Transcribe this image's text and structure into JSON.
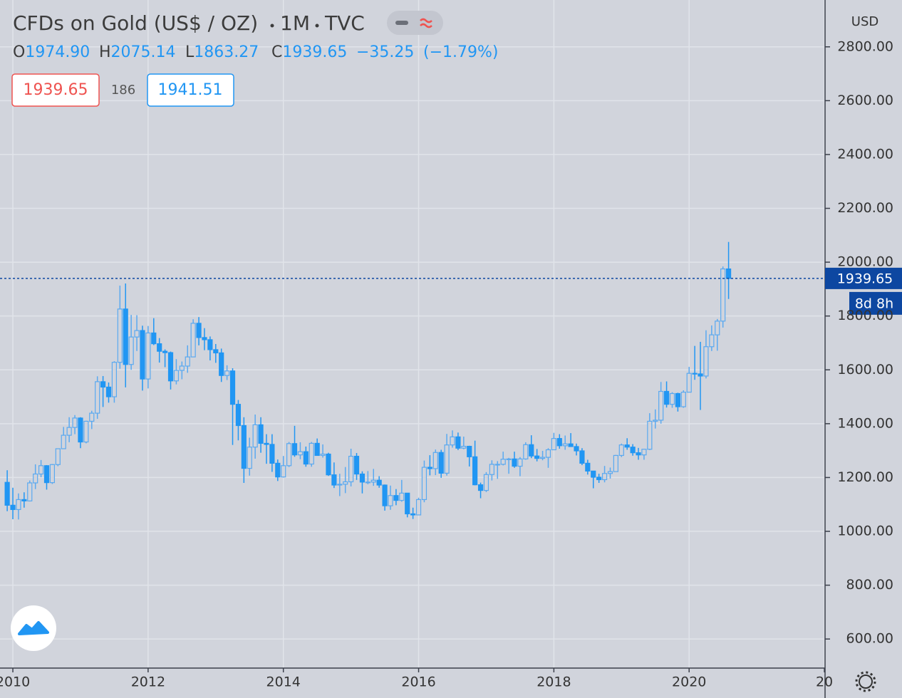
{
  "chart_data": {
    "type": "candlestick",
    "title": "CFDs on Gold (US$ / OZ)",
    "interval": "1M",
    "source": "TVC",
    "legend": [
      {
        "label": "O",
        "value": "1974.90"
      },
      {
        "label": "H",
        "value": "2075.14"
      },
      {
        "label": "L",
        "value": "1863.27"
      },
      {
        "label": "C",
        "value": "1939.65"
      }
    ],
    "change": "−35.25",
    "change_pct": "(−1.79%)",
    "sell": "1939.65",
    "spread": "186",
    "buy": "1941.51",
    "y_unit": "USD",
    "last_price": {
      "value": 1939.65,
      "label": "1939.65"
    },
    "countdown": "8d 8h",
    "up_color": "#5aa9f0",
    "down_color": "#2196f3",
    "grid": true,
    "x": [
      "2009-12",
      "2010-01",
      "2010-02",
      "2010-03",
      "2010-04",
      "2010-05",
      "2010-06",
      "2010-07",
      "2010-08",
      "2010-09",
      "2010-10",
      "2010-11",
      "2010-12",
      "2011-01",
      "2011-02",
      "2011-03",
      "2011-04",
      "2011-05",
      "2011-06",
      "2011-07",
      "2011-08",
      "2011-09",
      "2011-10",
      "2011-11",
      "2011-12",
      "2012-01",
      "2012-02",
      "2012-03",
      "2012-04",
      "2012-05",
      "2012-06",
      "2012-07",
      "2012-08",
      "2012-09",
      "2012-10",
      "2012-11",
      "2012-12",
      "2013-01",
      "2013-02",
      "2013-03",
      "2013-04",
      "2013-05",
      "2013-06",
      "2013-07",
      "2013-08",
      "2013-09",
      "2013-10",
      "2013-11",
      "2013-12",
      "2014-01",
      "2014-02",
      "2014-03",
      "2014-04",
      "2014-05",
      "2014-06",
      "2014-07",
      "2014-08",
      "2014-09",
      "2014-10",
      "2014-11",
      "2014-12",
      "2015-01",
      "2015-02",
      "2015-03",
      "2015-04",
      "2015-05",
      "2015-06",
      "2015-07",
      "2015-08",
      "2015-09",
      "2015-10",
      "2015-11",
      "2015-12",
      "2016-01",
      "2016-02",
      "2016-03",
      "2016-04",
      "2016-05",
      "2016-06",
      "2016-07",
      "2016-08",
      "2016-09",
      "2016-10",
      "2016-11",
      "2016-12",
      "2017-01",
      "2017-02",
      "2017-03",
      "2017-04",
      "2017-05",
      "2017-06",
      "2017-07",
      "2017-08",
      "2017-09",
      "2017-10",
      "2017-11",
      "2017-12",
      "2018-01",
      "2018-02",
      "2018-03",
      "2018-04",
      "2018-05",
      "2018-06",
      "2018-07",
      "2018-08",
      "2018-09",
      "2018-10",
      "2018-11",
      "2018-12",
      "2019-01",
      "2019-02",
      "2019-03",
      "2019-04",
      "2019-05",
      "2019-06",
      "2019-07",
      "2019-08",
      "2019-09",
      "2019-10",
      "2019-11",
      "2019-12",
      "2020-01",
      "2020-02",
      "2020-03",
      "2020-04",
      "2020-05",
      "2020-06",
      "2020-07",
      "2020-08"
    ],
    "open": [
      1182,
      1097,
      1081,
      1118,
      1113,
      1180,
      1213,
      1244,
      1181,
      1248,
      1307,
      1357,
      1386,
      1421,
      1332,
      1409,
      1439,
      1556,
      1536,
      1500,
      1628,
      1826,
      1620,
      1722,
      1746,
      1566,
      1737,
      1697,
      1669,
      1664,
      1559,
      1598,
      1614,
      1648,
      1773,
      1720,
      1712,
      1675,
      1663,
      1579,
      1596,
      1472,
      1393,
      1234,
      1313,
      1396,
      1327,
      1323,
      1253,
      1202,
      1244,
      1326,
      1284,
      1296,
      1250,
      1327,
      1282,
      1287,
      1210,
      1172,
      1175,
      1184,
      1279,
      1213,
      1183,
      1183,
      1190,
      1172,
      1095,
      1133,
      1115,
      1142,
      1065,
      1061,
      1118,
      1238,
      1233,
      1293,
      1216,
      1321,
      1351,
      1309,
      1316,
      1277,
      1173,
      1152,
      1211,
      1249,
      1249,
      1268,
      1269,
      1242,
      1269,
      1322,
      1280,
      1271,
      1275,
      1303,
      1345,
      1318,
      1325,
      1315,
      1299,
      1253,
      1224,
      1201,
      1192,
      1215,
      1222,
      1282,
      1321,
      1313,
      1292,
      1284,
      1305,
      1409,
      1413,
      1520,
      1472,
      1512,
      1463,
      1517,
      1587,
      1585,
      1577,
      1686,
      1730,
      1781,
      1974.9
    ],
    "high": [
      1227,
      1162,
      1141,
      1145,
      1189,
      1249,
      1265,
      1246,
      1250,
      1308,
      1388,
      1424,
      1432,
      1424,
      1411,
      1448,
      1576,
      1577,
      1553,
      1632,
      1913,
      1921,
      1804,
      1803,
      1764,
      1763,
      1792,
      1718,
      1676,
      1668,
      1640,
      1631,
      1691,
      1788,
      1796,
      1755,
      1724,
      1696,
      1679,
      1617,
      1606,
      1488,
      1424,
      1348,
      1434,
      1424,
      1361,
      1361,
      1267,
      1280,
      1332,
      1392,
      1331,
      1315,
      1332,
      1345,
      1323,
      1292,
      1256,
      1214,
      1239,
      1307,
      1291,
      1223,
      1224,
      1232,
      1205,
      1174,
      1170,
      1157,
      1191,
      1142,
      1088,
      1125,
      1263,
      1283,
      1304,
      1303,
      1362,
      1375,
      1367,
      1352,
      1318,
      1337,
      1181,
      1220,
      1264,
      1261,
      1296,
      1273,
      1296,
      1276,
      1331,
      1357,
      1306,
      1299,
      1309,
      1366,
      1361,
      1356,
      1365,
      1326,
      1309,
      1266,
      1224,
      1214,
      1243,
      1237,
      1284,
      1326,
      1346,
      1324,
      1310,
      1306,
      1439,
      1453,
      1555,
      1557,
      1517,
      1515,
      1524,
      1611,
      1689,
      1704,
      1747,
      1765,
      1789,
      1984,
      2075.14
    ],
    "low": [
      1075,
      1045,
      1044,
      1088,
      1111,
      1157,
      1201,
      1155,
      1176,
      1242,
      1306,
      1331,
      1361,
      1309,
      1327,
      1380,
      1418,
      1462,
      1478,
      1478,
      1604,
      1535,
      1600,
      1670,
      1523,
      1531,
      1692,
      1627,
      1610,
      1527,
      1546,
      1565,
      1589,
      1648,
      1691,
      1673,
      1635,
      1626,
      1555,
      1562,
      1321,
      1338,
      1180,
      1207,
      1270,
      1292,
      1251,
      1221,
      1187,
      1200,
      1239,
      1277,
      1268,
      1240,
      1240,
      1281,
      1274,
      1206,
      1161,
      1131,
      1142,
      1167,
      1191,
      1141,
      1175,
      1169,
      1162,
      1077,
      1080,
      1097,
      1110,
      1052,
      1046,
      1061,
      1108,
      1208,
      1209,
      1199,
      1207,
      1311,
      1302,
      1305,
      1241,
      1171,
      1123,
      1146,
      1189,
      1195,
      1245,
      1214,
      1236,
      1205,
      1266,
      1272,
      1260,
      1264,
      1236,
      1302,
      1307,
      1303,
      1314,
      1282,
      1246,
      1211,
      1160,
      1180,
      1182,
      1196,
      1221,
      1276,
      1303,
      1281,
      1266,
      1266,
      1302,
      1382,
      1400,
      1460,
      1459,
      1445,
      1459,
      1517,
      1563,
      1451,
      1568,
      1670,
      1671,
      1757,
      1863.27
    ],
    "close": [
      1097,
      1081,
      1118,
      1113,
      1180,
      1213,
      1244,
      1181,
      1248,
      1307,
      1357,
      1386,
      1421,
      1332,
      1409,
      1439,
      1556,
      1536,
      1500,
      1628,
      1826,
      1620,
      1722,
      1746,
      1566,
      1737,
      1697,
      1669,
      1664,
      1559,
      1598,
      1614,
      1648,
      1773,
      1720,
      1712,
      1675,
      1663,
      1579,
      1596,
      1472,
      1393,
      1234,
      1313,
      1396,
      1327,
      1323,
      1253,
      1202,
      1244,
      1326,
      1284,
      1296,
      1250,
      1327,
      1282,
      1287,
      1210,
      1172,
      1175,
      1184,
      1279,
      1213,
      1183,
      1183,
      1190,
      1172,
      1095,
      1133,
      1115,
      1142,
      1065,
      1061,
      1118,
      1238,
      1233,
      1293,
      1216,
      1321,
      1351,
      1309,
      1316,
      1277,
      1173,
      1152,
      1211,
      1249,
      1249,
      1268,
      1269,
      1242,
      1269,
      1322,
      1280,
      1271,
      1275,
      1303,
      1345,
      1318,
      1325,
      1315,
      1299,
      1253,
      1224,
      1201,
      1192,
      1215,
      1222,
      1282,
      1321,
      1313,
      1292,
      1284,
      1305,
      1409,
      1413,
      1520,
      1472,
      1512,
      1463,
      1517,
      1587,
      1585,
      1577,
      1686,
      1730,
      1781,
      1975,
      1939.65
    ],
    "xlim": [
      2009.81,
      2022.01
    ],
    "xticks": [
      2010,
      2012,
      2014,
      2016,
      2018,
      2020,
      {
        "value": 2022,
        "label": "20"
      }
    ],
    "ylim": [
      492,
      2974
    ],
    "yticks": [
      {
        "value": 600,
        "label": "600.00"
      },
      {
        "value": 800,
        "label": "800.00"
      },
      {
        "value": 1000,
        "label": "1000.00"
      },
      {
        "value": 1200,
        "label": "1200.00"
      },
      {
        "value": 1400,
        "label": "1400.00"
      },
      {
        "value": 1600,
        "label": "1600.00"
      },
      {
        "value": 1800,
        "label": "1800.00"
      },
      {
        "value": 2000,
        "label": "2000.00"
      },
      {
        "value": 2200,
        "label": "2200.00"
      },
      {
        "value": 2400,
        "label": "2400.00"
      },
      {
        "value": 2600,
        "label": "2600.00"
      },
      {
        "value": 2800,
        "label": "2800.00"
      }
    ]
  }
}
